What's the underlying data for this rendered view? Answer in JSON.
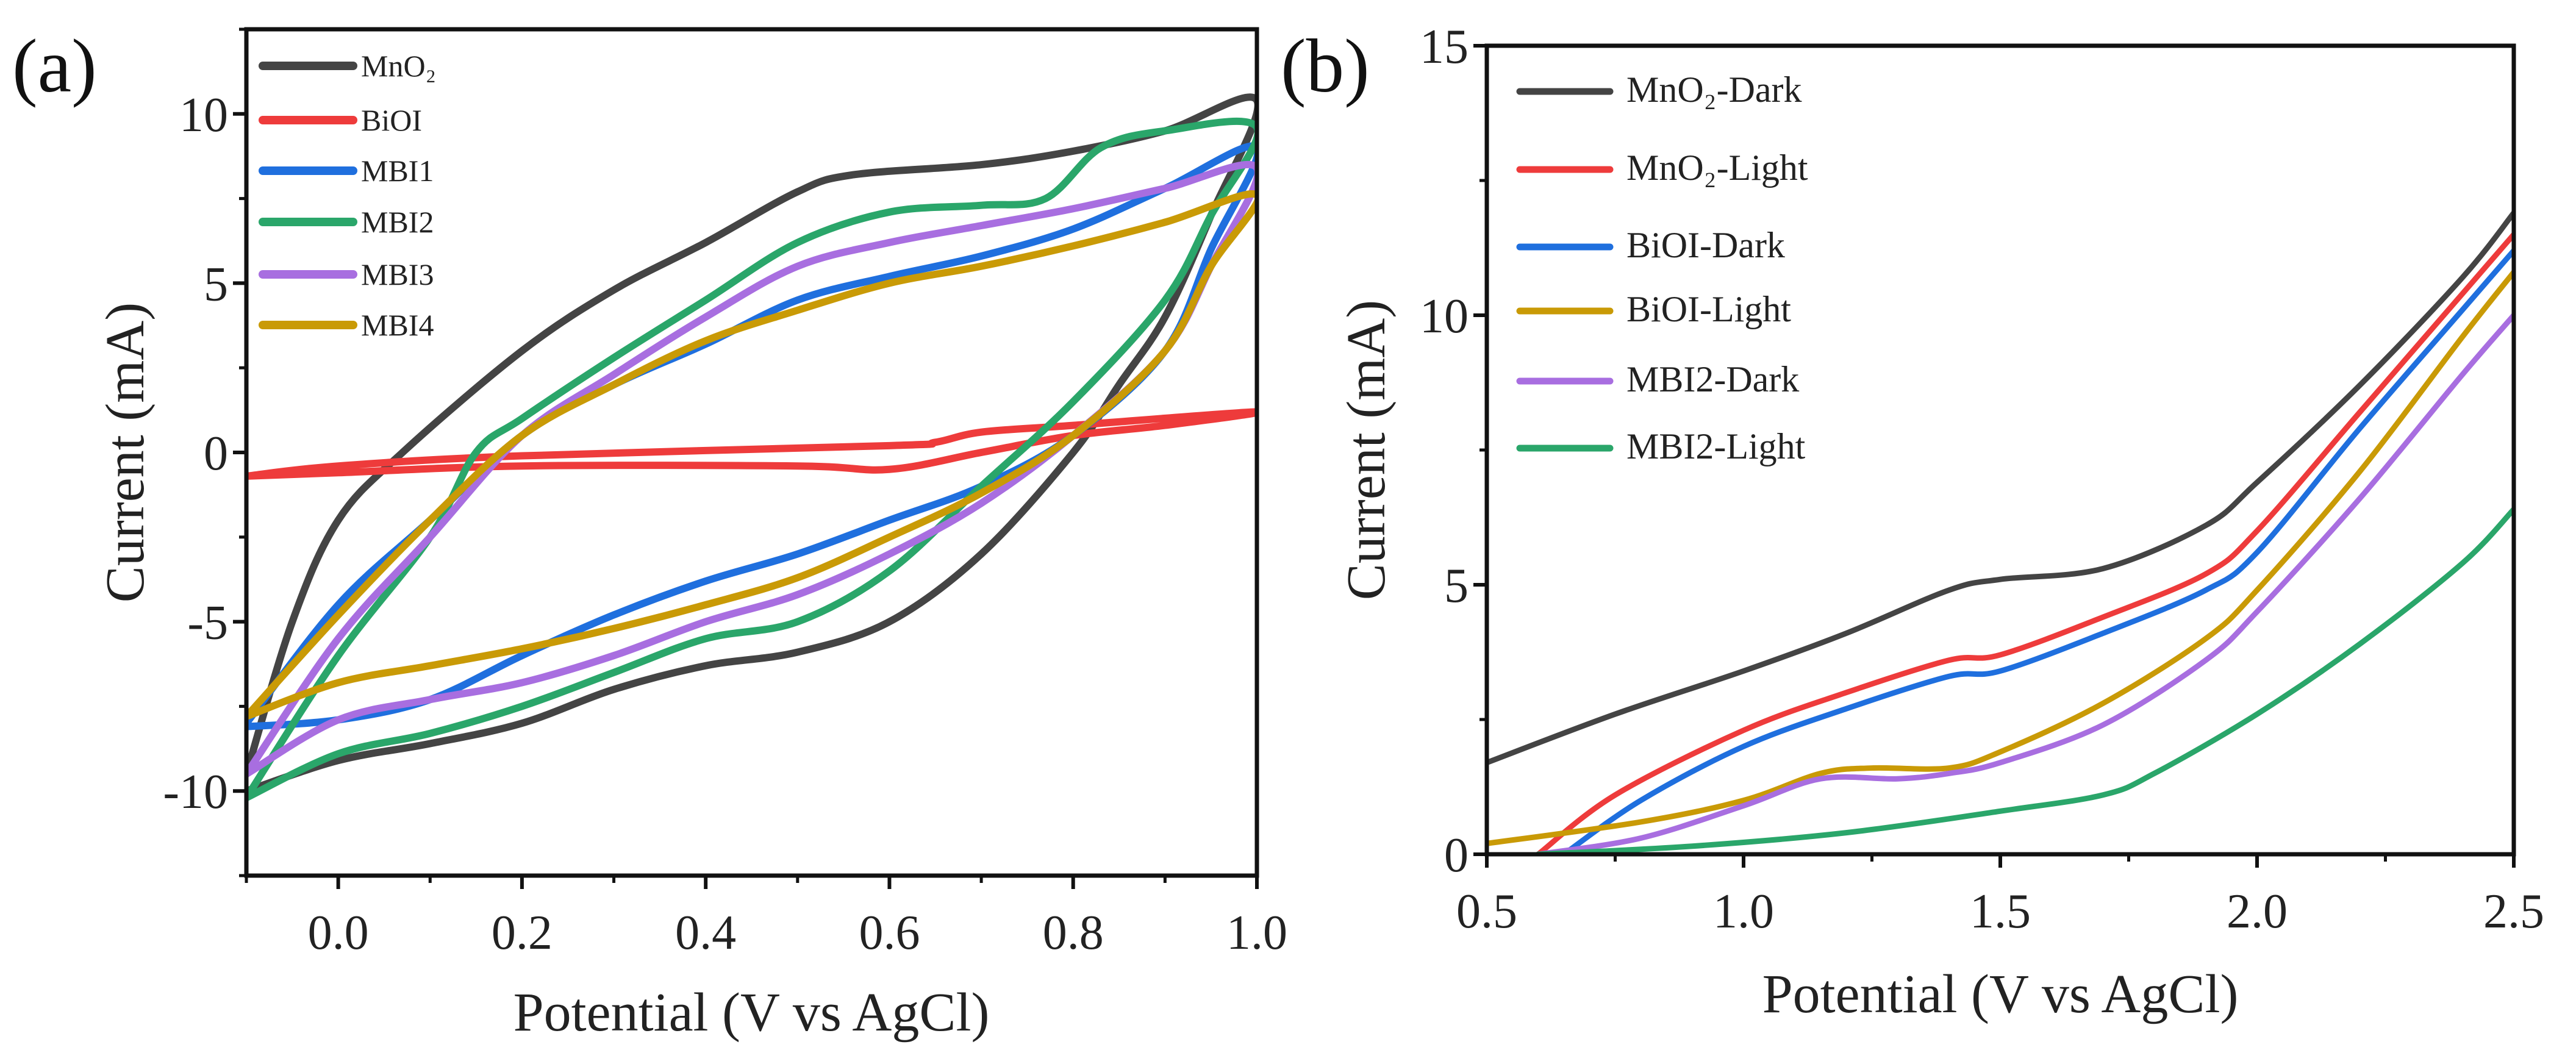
{
  "chart_data": [
    {
      "type": "line",
      "panel_label": "(a)",
      "xlabel": "Potential (V vs AgCl)",
      "ylabel": "Current (mA)",
      "xlim": [
        -0.1,
        1.0
      ],
      "ylim": [
        -12.5,
        12.5
      ],
      "xticks": [
        "0.0",
        "0.2",
        "0.4",
        "0.6",
        "0.8",
        "1.0"
      ],
      "yticks": [
        "-10",
        "-5",
        "0",
        "5",
        "10"
      ],
      "legend_position": "top-left",
      "grid": false,
      "series": [
        {
          "name": "MnO₂",
          "color": "#444444",
          "points": [
            [
              -0.1,
              -9.5
            ],
            [
              -0.05,
              -5
            ],
            [
              0,
              -2
            ],
            [
              0.07,
              0
            ],
            [
              0.2,
              3
            ],
            [
              0.3,
              4.8
            ],
            [
              0.4,
              6.2
            ],
            [
              0.5,
              7.7
            ],
            [
              0.56,
              8.2
            ],
            [
              0.7,
              8.5
            ],
            [
              0.8,
              8.9
            ],
            [
              0.9,
              9.5
            ],
            [
              1.0,
              10.4
            ],
            [
              0.95,
              7
            ],
            [
              0.9,
              4
            ],
            [
              0.85,
              2
            ],
            [
              0.8,
              0
            ],
            [
              0.7,
              -3
            ],
            [
              0.6,
              -5
            ],
            [
              0.5,
              -5.9
            ],
            [
              0.4,
              -6.3
            ],
            [
              0.3,
              -7
            ],
            [
              0.2,
              -8
            ],
            [
              0.1,
              -8.6
            ],
            [
              0,
              -9.1
            ],
            [
              -0.1,
              -10
            ]
          ]
        },
        {
          "name": "BiOI",
          "color": "#ee3b3b",
          "points": [
            [
              -0.1,
              -0.7
            ],
            [
              0,
              -0.4
            ],
            [
              0.2,
              -0.1
            ],
            [
              0.6,
              0.2
            ],
            [
              0.65,
              0.3
            ],
            [
              0.7,
              0.6
            ],
            [
              0.8,
              0.8
            ],
            [
              1.0,
              1.2
            ],
            [
              0.9,
              0.8
            ],
            [
              0.8,
              0.5
            ],
            [
              0.7,
              0
            ],
            [
              0.6,
              -0.5
            ],
            [
              0.5,
              -0.4
            ],
            [
              0.2,
              -0.4
            ],
            [
              0,
              -0.6
            ],
            [
              -0.1,
              -0.7
            ]
          ]
        },
        {
          "name": "MBI1",
          "color": "#1f6fde",
          "points": [
            [
              -0.1,
              -8
            ],
            [
              0,
              -4.5
            ],
            [
              0.1,
              -2
            ],
            [
              0.2,
              0.5
            ],
            [
              0.3,
              2
            ],
            [
              0.4,
              3.2
            ],
            [
              0.5,
              4.5
            ],
            [
              0.6,
              5.2
            ],
            [
              0.7,
              5.8
            ],
            [
              0.8,
              6.6
            ],
            [
              0.9,
              7.8
            ],
            [
              1.0,
              9
            ],
            [
              0.95,
              6
            ],
            [
              0.9,
              3
            ],
            [
              0.8,
              0.5
            ],
            [
              0.7,
              -1
            ],
            [
              0.6,
              -2
            ],
            [
              0.5,
              -3
            ],
            [
              0.4,
              -3.8
            ],
            [
              0.3,
              -4.8
            ],
            [
              0.2,
              -6
            ],
            [
              0.1,
              -7.3
            ],
            [
              0,
              -7.9
            ],
            [
              -0.1,
              -8.1
            ]
          ]
        },
        {
          "name": "MBI2",
          "color": "#2aa66a",
          "points": [
            [
              -0.1,
              -10.2
            ],
            [
              0,
              -6
            ],
            [
              0.1,
              -2.5
            ],
            [
              0.15,
              0
            ],
            [
              0.2,
              1
            ],
            [
              0.3,
              2.8
            ],
            [
              0.4,
              4.5
            ],
            [
              0.5,
              6.2
            ],
            [
              0.6,
              7.1
            ],
            [
              0.7,
              7.3
            ],
            [
              0.77,
              7.5
            ],
            [
              0.83,
              9
            ],
            [
              0.9,
              9.5
            ],
            [
              1.0,
              9.6
            ],
            [
              0.95,
              7
            ],
            [
              0.9,
              4.5
            ],
            [
              0.8,
              1.5
            ],
            [
              0.7,
              -1
            ],
            [
              0.6,
              -3.5
            ],
            [
              0.5,
              -5
            ],
            [
              0.4,
              -5.5
            ],
            [
              0.3,
              -6.5
            ],
            [
              0.2,
              -7.5
            ],
            [
              0.1,
              -8.3
            ],
            [
              0,
              -8.9
            ],
            [
              -0.1,
              -10.2
            ]
          ]
        },
        {
          "name": "MBI3",
          "color": "#a86ee0",
          "points": [
            [
              -0.1,
              -9.5
            ],
            [
              0,
              -5.5
            ],
            [
              0.1,
              -2.5
            ],
            [
              0.2,
              0.5
            ],
            [
              0.3,
              2.3
            ],
            [
              0.4,
              4
            ],
            [
              0.5,
              5.5
            ],
            [
              0.6,
              6.2
            ],
            [
              0.7,
              6.7
            ],
            [
              0.8,
              7.2
            ],
            [
              0.9,
              7.8
            ],
            [
              1.0,
              8.4
            ],
            [
              0.95,
              5.5
            ],
            [
              0.9,
              3
            ],
            [
              0.8,
              0.5
            ],
            [
              0.7,
              -1.5
            ],
            [
              0.6,
              -3
            ],
            [
              0.5,
              -4.2
            ],
            [
              0.4,
              -5
            ],
            [
              0.3,
              -6
            ],
            [
              0.2,
              -6.8
            ],
            [
              0.1,
              -7.3
            ],
            [
              0,
              -7.9
            ],
            [
              -0.1,
              -9.5
            ]
          ]
        },
        {
          "name": "MBI4",
          "color": "#c99a06",
          "points": [
            [
              -0.1,
              -7.8
            ],
            [
              0,
              -4.8
            ],
            [
              0.1,
              -2
            ],
            [
              0.2,
              0.5
            ],
            [
              0.3,
              2
            ],
            [
              0.4,
              3.3
            ],
            [
              0.5,
              4.2
            ],
            [
              0.6,
              5
            ],
            [
              0.7,
              5.5
            ],
            [
              0.8,
              6.1
            ],
            [
              0.9,
              6.8
            ],
            [
              1.0,
              7.6
            ],
            [
              0.95,
              5.5
            ],
            [
              0.9,
              3
            ],
            [
              0.8,
              0.5
            ],
            [
              0.7,
              -1.2
            ],
            [
              0.6,
              -2.5
            ],
            [
              0.5,
              -3.7
            ],
            [
              0.4,
              -4.5
            ],
            [
              0.3,
              -5.2
            ],
            [
              0.2,
              -5.8
            ],
            [
              0.1,
              -6.3
            ],
            [
              0,
              -6.8
            ],
            [
              -0.1,
              -7.8
            ]
          ]
        }
      ]
    },
    {
      "type": "line",
      "panel_label": "(b)",
      "xlabel": "Potential (V vs AgCl)",
      "ylabel": "Current (mA)",
      "xlim": [
        0.5,
        2.5
      ],
      "ylim": [
        0,
        15
      ],
      "xticks": [
        "0.5",
        "1.0",
        "1.5",
        "2.0",
        "2.5"
      ],
      "yticks": [
        "0",
        "5",
        "10",
        "15"
      ],
      "legend_position": "top-left",
      "grid": false,
      "series": [
        {
          "name": "MnO₂-Dark",
          "color": "#444444",
          "points": [
            [
              0.5,
              1.7
            ],
            [
              0.75,
              2.6
            ],
            [
              1.0,
              3.4
            ],
            [
              1.2,
              4.1
            ],
            [
              1.4,
              4.9
            ],
            [
              1.5,
              5.1
            ],
            [
              1.7,
              5.3
            ],
            [
              1.9,
              6.1
            ],
            [
              2.0,
              6.9
            ],
            [
              2.2,
              8.7
            ],
            [
              2.4,
              10.7
            ],
            [
              2.5,
              11.9
            ]
          ]
        },
        {
          "name": "MnO₂-Light",
          "color": "#ee3b3b",
          "points": [
            [
              0.6,
              0
            ],
            [
              0.75,
              1.1
            ],
            [
              1.0,
              2.3
            ],
            [
              1.2,
              3
            ],
            [
              1.4,
              3.6
            ],
            [
              1.5,
              3.7
            ],
            [
              1.7,
              4.4
            ],
            [
              1.9,
              5.2
            ],
            [
              2.0,
              6
            ],
            [
              2.2,
              8.2
            ],
            [
              2.4,
              10.4
            ],
            [
              2.5,
              11.5
            ]
          ]
        },
        {
          "name": "BiOI-Dark",
          "color": "#1f6fde",
          "points": [
            [
              0.65,
              0
            ],
            [
              0.8,
              1
            ],
            [
              1.0,
              2
            ],
            [
              1.2,
              2.7
            ],
            [
              1.4,
              3.3
            ],
            [
              1.5,
              3.4
            ],
            [
              1.7,
              4.1
            ],
            [
              1.9,
              4.9
            ],
            [
              2.0,
              5.6
            ],
            [
              2.2,
              7.9
            ],
            [
              2.4,
              10.1
            ],
            [
              2.5,
              11.2
            ]
          ]
        },
        {
          "name": "BiOI-Light",
          "color": "#c99a06",
          "points": [
            [
              0.5,
              0.2
            ],
            [
              0.8,
              0.6
            ],
            [
              1.0,
              1
            ],
            [
              1.15,
              1.5
            ],
            [
              1.25,
              1.6
            ],
            [
              1.4,
              1.6
            ],
            [
              1.5,
              1.9
            ],
            [
              1.7,
              2.8
            ],
            [
              1.9,
              4
            ],
            [
              2.0,
              4.9
            ],
            [
              2.2,
              7.1
            ],
            [
              2.4,
              9.6
            ],
            [
              2.5,
              10.8
            ]
          ]
        },
        {
          "name": "MBI2-Dark",
          "color": "#a86ee0",
          "points": [
            [
              0.6,
              0
            ],
            [
              0.8,
              0.3
            ],
            [
              1.0,
              0.9
            ],
            [
              1.15,
              1.4
            ],
            [
              1.3,
              1.4
            ],
            [
              1.4,
              1.5
            ],
            [
              1.5,
              1.7
            ],
            [
              1.7,
              2.4
            ],
            [
              1.9,
              3.6
            ],
            [
              2.0,
              4.5
            ],
            [
              2.2,
              6.6
            ],
            [
              2.4,
              8.9
            ],
            [
              2.5,
              10
            ]
          ]
        },
        {
          "name": "MBI2-Light",
          "color": "#2aa66a",
          "points": [
            [
              0.6,
              0
            ],
            [
              0.9,
              0.15
            ],
            [
              1.2,
              0.4
            ],
            [
              1.5,
              0.8
            ],
            [
              1.7,
              1.1
            ],
            [
              1.8,
              1.5
            ],
            [
              2.0,
              2.6
            ],
            [
              2.2,
              3.9
            ],
            [
              2.4,
              5.4
            ],
            [
              2.5,
              6.4
            ]
          ]
        }
      ]
    }
  ]
}
